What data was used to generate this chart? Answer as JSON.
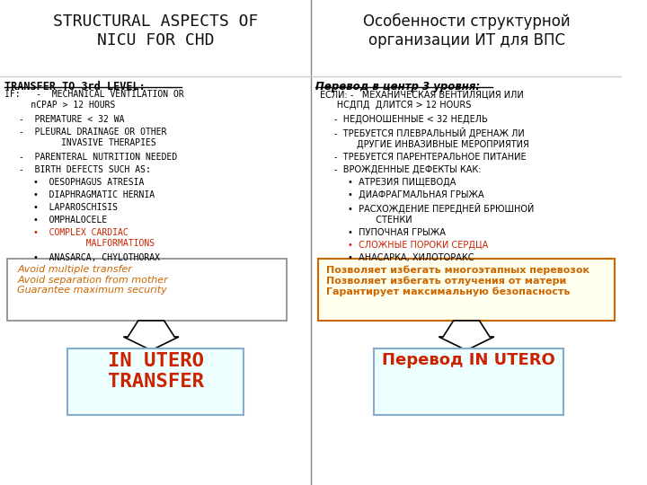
{
  "left_title": "STRUCTURAL ASPECTS OF\nNICU FOR CHD",
  "right_title": "Особенности структурной\nорганизации ИТ для ВПС",
  "left_header": "TRANSFER TO 3rd LEVEL:",
  "right_header": "Перевод в центр 3 уровня:",
  "left_body": [
    {
      "text": "IF:   -  MECHANICAL VENTILATION OR\n     nCPAP > 12 HOURS",
      "indent": 0,
      "color": "#000000",
      "bullet": ""
    },
    {
      "text": "PREMATURE < 32 WA",
      "indent": 1,
      "color": "#000000",
      "bullet": "-"
    },
    {
      "text": "PLEURAL DRAINAGE OR OTHER\n        INVASIVE THERAPIES",
      "indent": 1,
      "color": "#000000",
      "bullet": "-"
    },
    {
      "text": "PARENTERAL NUTRITION NEEDED",
      "indent": 1,
      "color": "#000000",
      "bullet": "-"
    },
    {
      "text": "BIRTH DEFECTS SUCH AS:",
      "indent": 1,
      "color": "#000000",
      "bullet": "-"
    },
    {
      "text": "OESOPHAGUS ATRESIA",
      "indent": 2,
      "color": "#000000",
      "bullet": "•"
    },
    {
      "text": "DIAPHRAGMATIC HERNIA",
      "indent": 2,
      "color": "#000000",
      "bullet": "•"
    },
    {
      "text": "LAPAROSCHISIS",
      "indent": 2,
      "color": "#000000",
      "bullet": "•"
    },
    {
      "text": "OMPHALOCELE",
      "indent": 2,
      "color": "#000000",
      "bullet": "•"
    },
    {
      "text": "COMPLEX CARDIAC\n          MALFORMATIONS",
      "indent": 2,
      "color": "#cc2200",
      "bullet": "•"
    },
    {
      "text": "ANASARCA, CHYLOTHORAX",
      "indent": 2,
      "color": "#000000",
      "bullet": "•"
    }
  ],
  "right_body": [
    {
      "text": "ЕСЛИ: -   МЕХАНИЧЕСКАЯ ВЕНТИЛЯЦИЯ ИЛИ\n      НСДПД  ДЛИТСЯ > 12 HOURS",
      "indent": 0,
      "color": "#000000",
      "bullet": ""
    },
    {
      "text": "НЕДОНОШЕННЫЕ < 32 НЕДЕЛЬ",
      "indent": 1,
      "color": "#000000",
      "bullet": "-"
    },
    {
      "text": "ТРЕБУЕТСЯ ПЛЕВРАЛЬНЫЙ ДРЕНАЖ ЛИ\n        ДРУГИЕ ИНВАЗИВНЫЕ МЕРОПРИЯТИЯ",
      "indent": 1,
      "color": "#000000",
      "bullet": "-"
    },
    {
      "text": "ТРЕБУЕТСЯ ПАРЕНТЕРАЛЬНОЕ ПИТАНИЕ",
      "indent": 1,
      "color": "#000000",
      "bullet": "-"
    },
    {
      "text": "ВРОЖДЕННЫЕ ДЕФЕКТЫ КАК:",
      "indent": 1,
      "color": "#000000",
      "bullet": "-"
    },
    {
      "text": "АТРЕЗИЯ ПИЩЕВОДА",
      "indent": 2,
      "color": "#000000",
      "bullet": "•"
    },
    {
      "text": "ДИАФРАГМАЛЬНАЯ ГРЫЖА",
      "indent": 2,
      "color": "#000000",
      "bullet": "•"
    },
    {
      "text": "РАСХОЖДЕНИЕ ПЕРЕДНЕЙ БРЮШНОЙ\n          СТЕНКИ",
      "indent": 2,
      "color": "#000000",
      "bullet": "•"
    },
    {
      "text": "ПУПОЧНАЯ ГРЫЖА",
      "indent": 2,
      "color": "#000000",
      "bullet": "•"
    },
    {
      "text": "СЛОЖНЫЕ ПОРОКИ СЕРДЦА",
      "indent": 2,
      "color": "#cc2200",
      "bullet": "•"
    },
    {
      "text": "АНАСАРКА, ХИЛОТОРАКС",
      "indent": 2,
      "color": "#000000",
      "bullet": "•"
    }
  ],
  "left_box_text": "Avoid multiple transfer\nAvoid separation from mother\nGuarantee maximum security",
  "right_box_text": "Позволяет избегать многоэтапных перевозок\nПозволяет избегать отлучения от матери\nГарантирует максимальную безопасность",
  "left_arrow_text": "IN UTERO\nTRANSFER",
  "right_arrow_text": "Перевод IN UTERO",
  "bg_color": "#ffffff",
  "divider_color": "#888888",
  "header_underline_color": "#000000",
  "box_border_color": "#888888",
  "box_text_color": "#cc6600",
  "arrow_box_border_color": "#88aacc",
  "arrow_text_color": "#cc2200",
  "right_box_border_color": "#cc6600",
  "right_box_bg": "#ffffee",
  "left_box_bg": "#ffffff"
}
